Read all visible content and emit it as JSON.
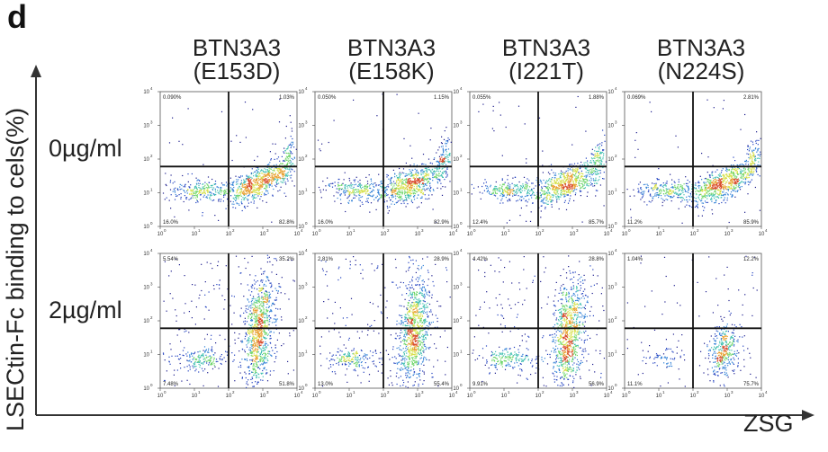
{
  "panel_label": "d",
  "axis_titles": {
    "y": "LSECtin-Fc binding to cels(%)",
    "x": "ZSG"
  },
  "row_labels": [
    "0µg/ml",
    "2µg/ml"
  ],
  "columns": [
    {
      "line1": "BTN3A3",
      "line2": "(E153D)"
    },
    {
      "line1": "BTN3A3",
      "line2": "(E158K)"
    },
    {
      "line1": "BTN3A3",
      "line2": "(I221T)"
    },
    {
      "line1": "BTN3A3",
      "line2": "(N224S)"
    }
  ],
  "chart_data": {
    "type": "scatter",
    "description": "Flow cytometry density plots, log scale",
    "xlim": [
      1,
      10000
    ],
    "ylim": [
      1,
      10000
    ],
    "x_scale": "log",
    "y_scale": "log",
    "tick_labels": [
      "10^0",
      "10^1",
      "10^2",
      "10^3",
      "10^4"
    ],
    "gates": {
      "x": 100,
      "y": 60
    },
    "plots": [
      {
        "row": 0,
        "col": 0,
        "quadrants": {
          "UL": "0.090%",
          "UR": "1.03%",
          "LL": "16.0%",
          "LR": "82.8%"
        }
      },
      {
        "row": 0,
        "col": 1,
        "quadrants": {
          "UL": "0.050%",
          "UR": "1.15%",
          "LL": "16.0%",
          "LR": "82.9%"
        }
      },
      {
        "row": 0,
        "col": 2,
        "quadrants": {
          "UL": "0.055%",
          "UR": "1.88%",
          "LL": "12.4%",
          "LR": "85.7%"
        }
      },
      {
        "row": 0,
        "col": 3,
        "quadrants": {
          "UL": "0.069%",
          "UR": "2.81%",
          "LL": "11.2%",
          "LR": "85.9%"
        }
      },
      {
        "row": 1,
        "col": 0,
        "quadrants": {
          "UL": "5.54%",
          "UR": "35.2%",
          "LL": "7.48%",
          "LR": "51.8%"
        }
      },
      {
        "row": 1,
        "col": 1,
        "quadrants": {
          "UL": "2.81%",
          "UR": "28.9%",
          "LL": "13.0%",
          "LR": "55.4%"
        }
      },
      {
        "row": 1,
        "col": 2,
        "quadrants": {
          "UL": "4.42%",
          "UR": "28.8%",
          "LL": "9.91%",
          "LR": "56.9%"
        }
      },
      {
        "row": 1,
        "col": 3,
        "quadrants": {
          "UL": "1.04%",
          "UR": "12.2%",
          "LL": "11.1%",
          "LR": "75.7%"
        }
      }
    ]
  }
}
